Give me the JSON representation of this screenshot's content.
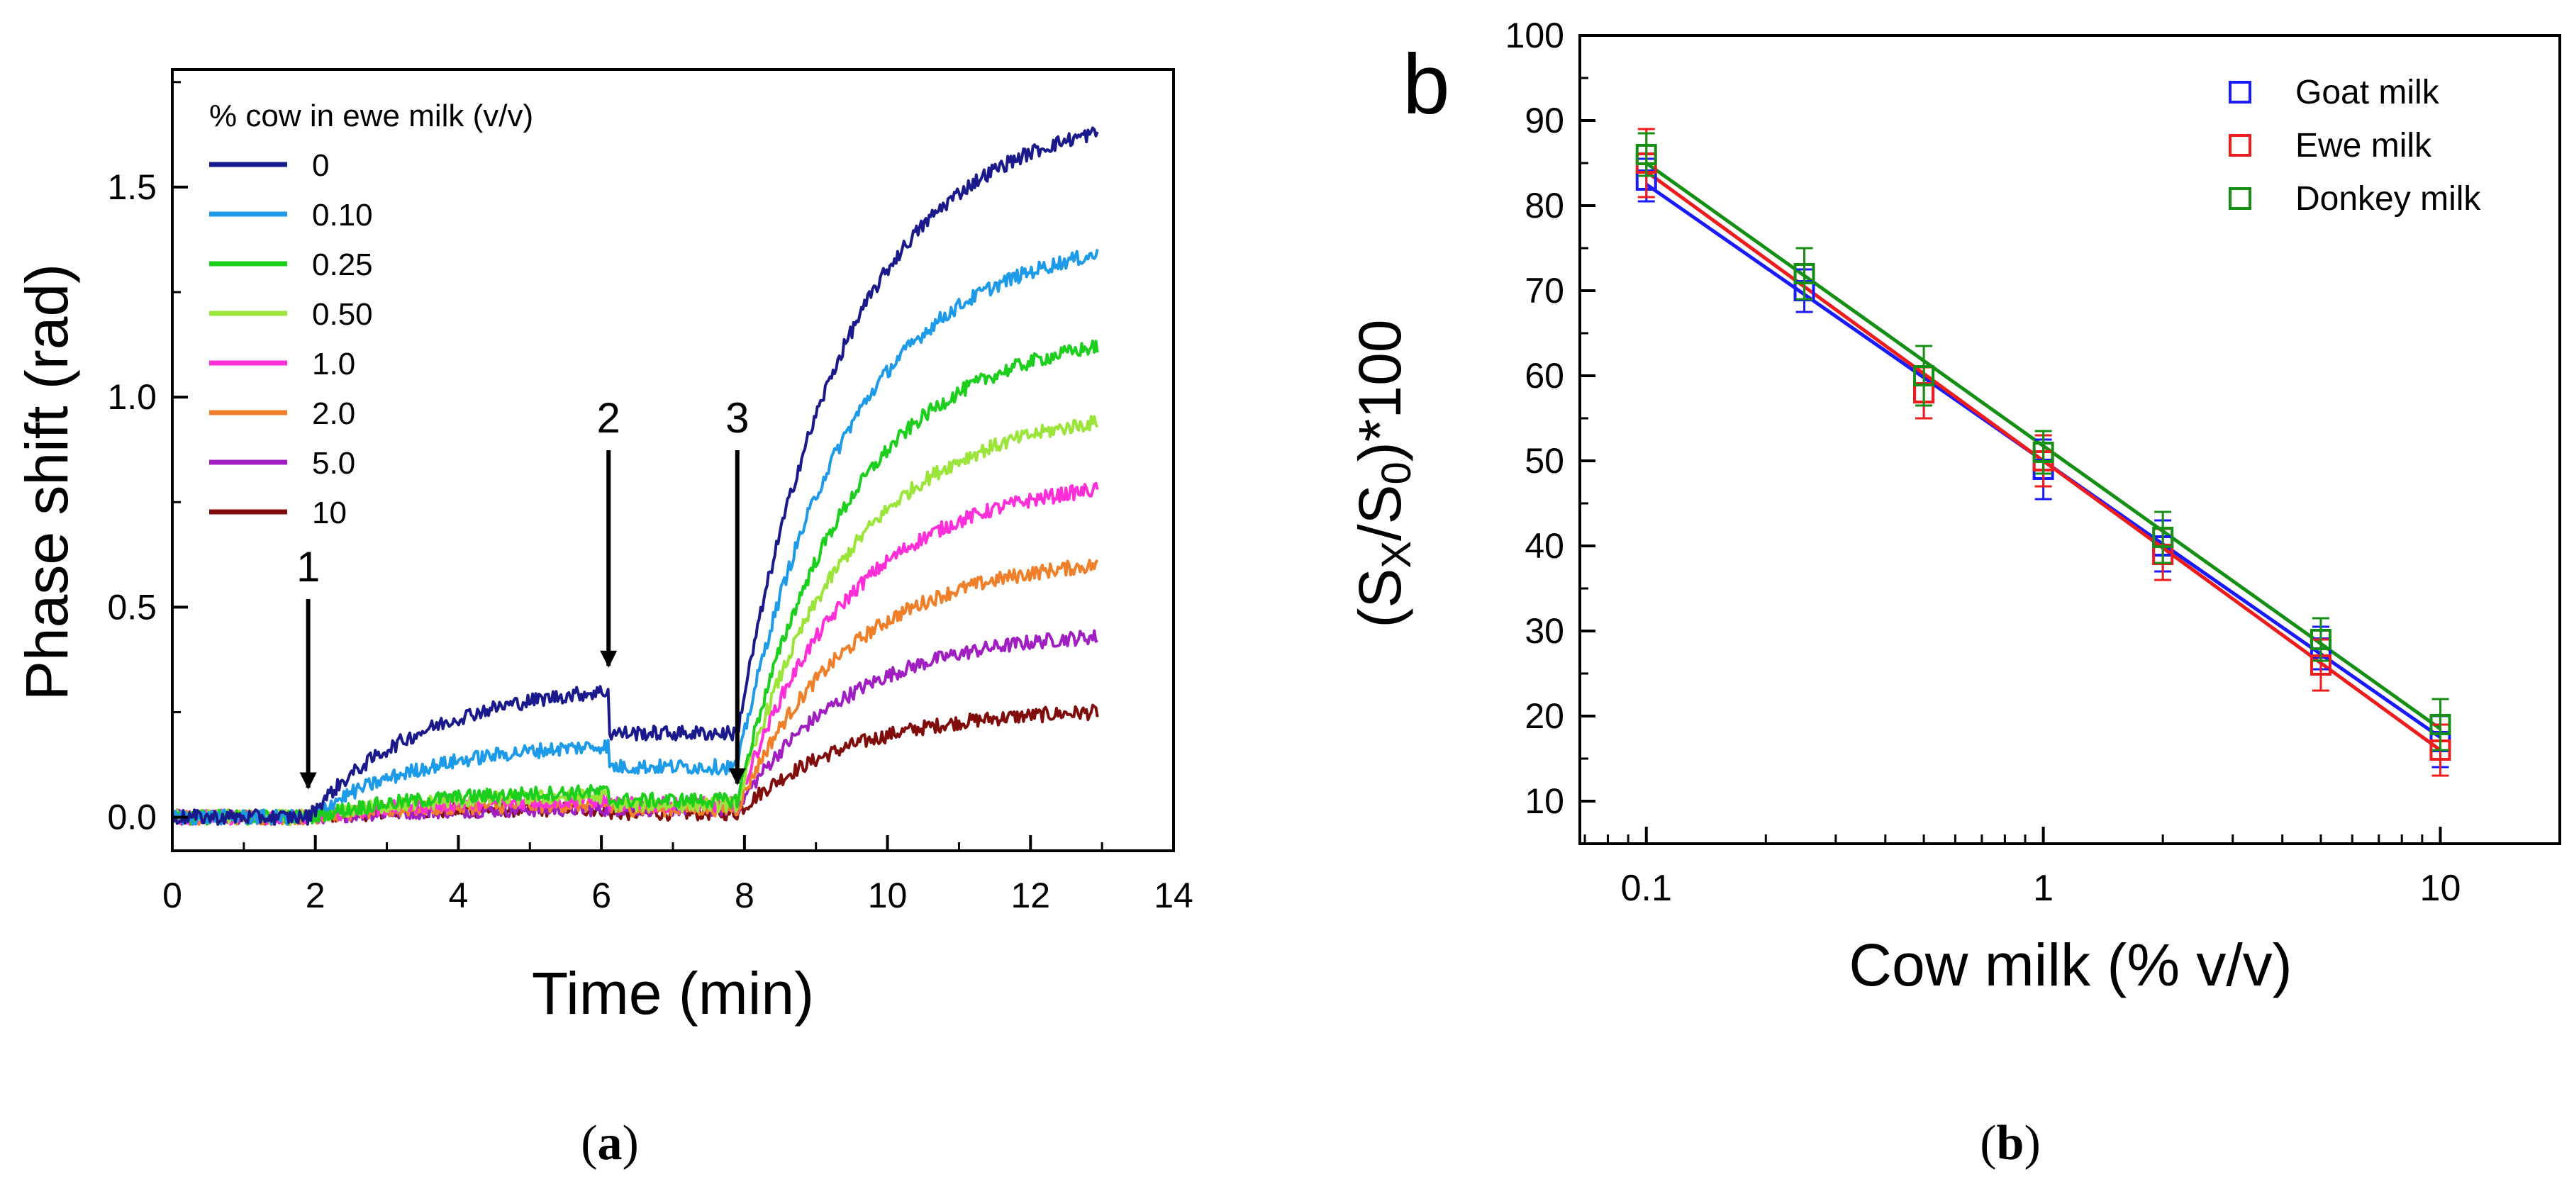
{
  "chart_data": [
    {
      "type": "line",
      "panel": "a",
      "caption_paren_open": "(",
      "caption_letter": "a",
      "caption_paren_close": ")",
      "xlabel": "Time (min)",
      "ylabel": "Phase shift (rad)",
      "xlim": [
        0,
        14
      ],
      "ylim": [
        -0.08,
        1.78
      ],
      "xticks": [
        0,
        2,
        4,
        6,
        8,
        10,
        12,
        14
      ],
      "xtick_labels": [
        "0",
        "2",
        "4",
        "6",
        "8",
        "10",
        "12",
        "14"
      ],
      "yticks": [
        0.0,
        0.5,
        1.0,
        1.5
      ],
      "ytick_labels": [
        "0.0",
        "0.5",
        "1.0",
        "1.5"
      ],
      "legend_title": "% cow in ewe milk (v/v)",
      "legend_position": "top-left",
      "annotations": [
        {
          "label": "1",
          "x": 1.9,
          "y_head": 0.07
        },
        {
          "label": "2",
          "x": 6.1,
          "y_head": 0.36
        },
        {
          "label": "3",
          "x": 7.9,
          "y_head": 0.08
        }
      ],
      "series": [
        {
          "name": "0",
          "color": "#1a1a8c",
          "stage1": 0.3,
          "plateau": 0.2,
          "final": 1.63
        },
        {
          "name": "0.10",
          "color": "#1e9be8",
          "stage1": 0.17,
          "plateau": 0.12,
          "final": 1.34
        },
        {
          "name": "0.25",
          "color": "#1ccf1c",
          "stage1": 0.06,
          "plateau": 0.04,
          "final": 1.12
        },
        {
          "name": "0.50",
          "color": "#9be53a",
          "stage1": 0.05,
          "plateau": 0.03,
          "final": 0.94
        },
        {
          "name": "1.0",
          "color": "#ff2ed8",
          "stage1": 0.04,
          "plateau": 0.03,
          "final": 0.78
        },
        {
          "name": "2.0",
          "color": "#f07f2a",
          "stage1": 0.03,
          "plateau": 0.02,
          "final": 0.6
        },
        {
          "name": "5.0",
          "color": "#a11fc2",
          "stage1": 0.02,
          "plateau": 0.02,
          "final": 0.43
        },
        {
          "name": "10",
          "color": "#800c0c",
          "stage1": 0.02,
          "plateau": 0.01,
          "final": 0.25
        }
      ]
    },
    {
      "type": "scatter",
      "panel": "b",
      "panel_label": "b",
      "caption_paren_open": "(",
      "caption_letter": "b",
      "caption_paren_close": ")",
      "xlabel": "Cow milk (% v/v)",
      "ylabel_base": "(S",
      "ylabel_sub1": "X",
      "ylabel_mid": "/S",
      "ylabel_sub2": "0",
      "ylabel_tail": ")*100",
      "xscale": "log",
      "xlim": [
        0.068,
        20
      ],
      "ylim": [
        5,
        100
      ],
      "xticks": [
        0.1,
        1,
        10
      ],
      "xtick_labels": [
        "0.1",
        "1",
        "10"
      ],
      "yticks": [
        10,
        20,
        30,
        40,
        50,
        60,
        70,
        80,
        90,
        100
      ],
      "ytick_labels": [
        "10",
        "20",
        "30",
        "40",
        "50",
        "60",
        "70",
        "80",
        "90",
        "100"
      ],
      "legend_position": "top-right",
      "x": [
        0.1,
        0.25,
        0.5,
        1,
        2,
        5,
        10
      ],
      "series": [
        {
          "name": "Goat milk",
          "color": "#1a1aff",
          "values": [
            83,
            70,
            58,
            49,
            40,
            28,
            17
          ],
          "errors": [
            2.5,
            2.5,
            3,
            3.5,
            3,
            2.5,
            3
          ],
          "fit": {
            "at_0.1": 82.5,
            "at_10": 17.5
          }
        },
        {
          "name": "Ewe milk",
          "color": "#ee1c1c",
          "values": [
            85,
            72,
            58,
            50,
            39,
            26,
            16
          ],
          "errors": [
            4,
            3,
            3,
            3,
            3,
            3,
            3
          ],
          "fit": {
            "at_0.1": 84.0,
            "at_10": 16.0
          }
        },
        {
          "name": "Donkey milk",
          "color": "#159015",
          "values": [
            86,
            72,
            60,
            51,
            41,
            29,
            19
          ],
          "errors": [
            2.5,
            3,
            3.5,
            2.5,
            3,
            2.5,
            3
          ],
          "fit": {
            "at_0.1": 85.0,
            "at_10": 18.5
          }
        }
      ]
    }
  ]
}
